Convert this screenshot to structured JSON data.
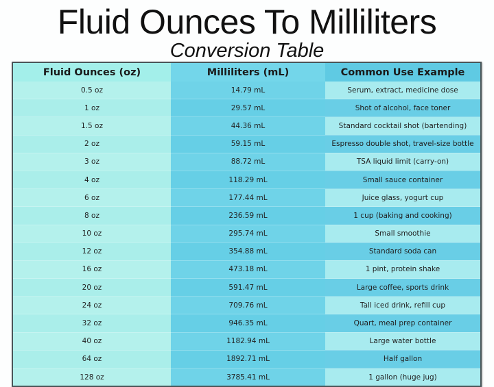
{
  "title": "Fluid Ounces To Milliliters",
  "subtitle": "Conversion Table",
  "headers": [
    "Fluid Ounces (oz)",
    "Milliliters (mL)",
    "Common Use Example"
  ],
  "rows": [
    [
      "0.5 oz",
      "14.79 mL",
      "Serum, extract, medicine dose"
    ],
    [
      "1 oz",
      "29.57 mL",
      "Shot of alcohol, face toner"
    ],
    [
      "1.5 oz",
      "44.36 mL",
      "Standard cocktail shot (bartending)"
    ],
    [
      "2 oz",
      "59.15 mL",
      "Espresso double shot, travel-size bottle"
    ],
    [
      "3 oz",
      "88.72 mL",
      "TSA liquid limit (carry-on)"
    ],
    [
      "4 oz",
      "118.29 mL",
      "Small sauce container"
    ],
    [
      "6 oz",
      "177.44 mL",
      "Juice glass, yogurt cup"
    ],
    [
      "8 oz",
      "236.59 mL",
      "1 cup (baking and cooking)"
    ],
    [
      "10 oz",
      "295.74 mL",
      "Small smoothie"
    ],
    [
      "12 oz",
      "354.88 mL",
      "Standard soda can"
    ],
    [
      "16 oz",
      "473.18 mL",
      "1 pint, protein shake"
    ],
    [
      "20 oz",
      "591.47 mL",
      "Large coffee, sports drink"
    ],
    [
      "24 oz",
      "709.76 mL",
      "Tall iced drink, refill cup"
    ],
    [
      "32 oz",
      "946.35 mL",
      "Quart, meal prep container"
    ],
    [
      "40 oz",
      "1182.94 mL",
      "Large water bottle"
    ],
    [
      "64 oz",
      "1892.71 mL",
      "Half gallon"
    ],
    [
      "128 oz",
      "3785.41 mL",
      "1 gallon (huge jug)"
    ]
  ]
}
